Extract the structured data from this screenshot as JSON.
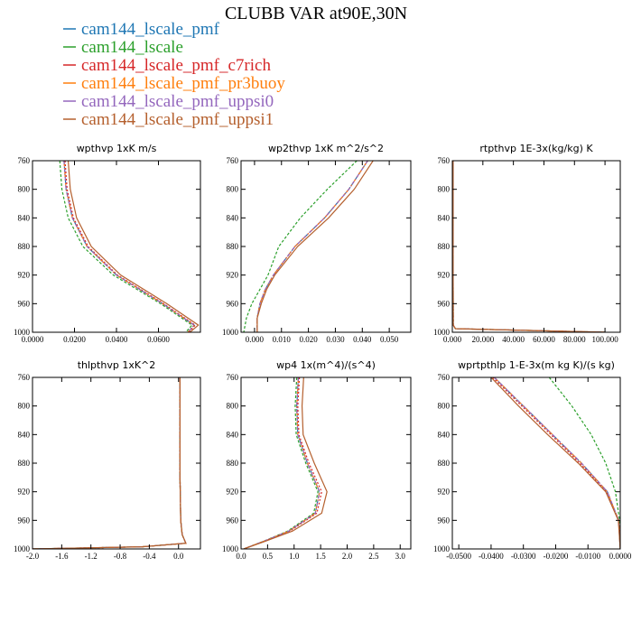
{
  "figure_title": "CLUBB VAR at90E,30N",
  "legend": [
    {
      "label": "cam144_lscale_pmf",
      "color": "#1f77b4"
    },
    {
      "label": "cam144_lscale",
      "color": "#2ca02c"
    },
    {
      "label": "cam144_lscale_pmf_c7rich",
      "color": "#d62728"
    },
    {
      "label": "cam144_lscale_pmf_pr3buoy",
      "color": "#ff7f0e"
    },
    {
      "label": "cam144_lscale_pmf_uppsi0",
      "color": "#9467bd"
    },
    {
      "label": "cam144_lscale_pmf_uppsi1",
      "color": "#b5602e"
    }
  ],
  "chart_data": [
    {
      "type": "line",
      "title": "wpthvp  1xK m/s",
      "xlim": [
        0,
        0.08
      ],
      "ylim": [
        760,
        1000
      ],
      "xticks": [
        0,
        0.02,
        0.04,
        0.06
      ],
      "xtick_labels": [
        "0.0000",
        "0.0200",
        "0.0400",
        "0.0600"
      ],
      "yticks": [
        760,
        800,
        840,
        880,
        920,
        960,
        1000
      ],
      "ytick_labels": [
        "760",
        "800",
        "840",
        "880",
        "920",
        "960",
        "1000"
      ],
      "y": [
        760,
        800,
        840,
        880,
        920,
        960,
        990,
        1000
      ],
      "series": [
        {
          "values": [
            0.015,
            0.016,
            0.019,
            0.026,
            0.04,
            0.062,
            0.077,
            0.074
          ]
        },
        {
          "values": [
            0.013,
            0.014,
            0.017,
            0.024,
            0.0385,
            0.061,
            0.076,
            0.073
          ]
        },
        {
          "values": [
            0.0155,
            0.0165,
            0.0195,
            0.0265,
            0.0405,
            0.0625,
            0.0775,
            0.0745
          ]
        },
        {
          "values": [
            0.015,
            0.016,
            0.019,
            0.026,
            0.04,
            0.062,
            0.077,
            0.074
          ]
        },
        {
          "values": [
            0.015,
            0.016,
            0.019,
            0.026,
            0.04,
            0.062,
            0.077,
            0.074
          ]
        },
        {
          "values": [
            0.017,
            0.018,
            0.021,
            0.028,
            0.042,
            0.064,
            0.079,
            0.075
          ]
        }
      ]
    },
    {
      "type": "line",
      "title": "wp2thvp  1xK m^2/s^2",
      "xlim": [
        -0.005,
        0.058
      ],
      "ylim": [
        760,
        1000
      ],
      "xticks": [
        0,
        0.01,
        0.02,
        0.03,
        0.04,
        0.05
      ],
      "xtick_labels": [
        "0.000",
        "0.010",
        "0.020",
        "0.030",
        "0.040",
        "0.050"
      ],
      "yticks": [
        760,
        800,
        840,
        880,
        920,
        960,
        1000
      ],
      "ytick_labels": [
        "760",
        "800",
        "840",
        "880",
        "920",
        "960",
        "1000"
      ],
      "y": [
        760,
        800,
        840,
        880,
        920,
        940,
        960,
        980,
        1000
      ],
      "series": [
        {
          "values": [
            0.042,
            0.035,
            0.026,
            0.015,
            0.007,
            0.004,
            0.002,
            0.001,
            0.001
          ]
        },
        {
          "values": [
            0.038,
            0.027,
            0.017,
            0.009,
            0.005,
            0.002,
            -0.001,
            -0.003,
            -0.004
          ]
        },
        {
          "values": [
            0.042,
            0.035,
            0.026,
            0.015,
            0.007,
            0.004,
            0.002,
            0.001,
            0.001
          ]
        },
        {
          "values": [
            0.042,
            0.035,
            0.026,
            0.015,
            0.007,
            0.004,
            0.002,
            0.001,
            0.001
          ]
        },
        {
          "values": [
            0.042,
            0.035,
            0.026,
            0.015,
            0.007,
            0.004,
            0.002,
            0.001,
            0.001
          ]
        },
        {
          "values": [
            0.044,
            0.037,
            0.0275,
            0.016,
            0.0075,
            0.0045,
            0.0025,
            0.001,
            0.001
          ]
        }
      ]
    },
    {
      "type": "line",
      "title": "rtpthvp  1E-3x(kg/kg) K",
      "xlim": [
        0,
        110
      ],
      "ylim": [
        760,
        1000
      ],
      "xticks": [
        0,
        20,
        40,
        60,
        80,
        100
      ],
      "xtick_labels": [
        "0.000",
        "20.000",
        "40.000",
        "60.000",
        "80.000",
        "100.000"
      ],
      "yticks": [
        760,
        800,
        840,
        880,
        920,
        960,
        1000
      ],
      "ytick_labels": [
        "760",
        "800",
        "840",
        "880",
        "920",
        "960",
        "1000"
      ],
      "y": [
        760,
        800,
        900,
        990,
        995,
        1000
      ],
      "series": [
        {
          "values": [
            0.5,
            0.5,
            0.5,
            0.6,
            2.0,
            100.0
          ]
        },
        {
          "values": [
            0.5,
            0.5,
            0.5,
            0.6,
            2.0,
            100.0
          ]
        },
        {
          "values": [
            0.5,
            0.5,
            0.5,
            0.6,
            2.0,
            100.0
          ]
        },
        {
          "values": [
            0.5,
            0.5,
            0.5,
            0.6,
            2.0,
            100.0
          ]
        },
        {
          "values": [
            0.5,
            0.5,
            0.5,
            0.6,
            2.0,
            100.0
          ]
        },
        {
          "values": [
            0.5,
            0.5,
            0.5,
            0.6,
            2.0,
            100.0
          ]
        }
      ]
    },
    {
      "type": "line",
      "title": "thlpthvp   1xK^2",
      "xlim": [
        -2.0,
        0.3
      ],
      "ylim": [
        760,
        1000
      ],
      "xticks": [
        -2.0,
        -1.6,
        -1.2,
        -0.8,
        -0.4,
        0.0
      ],
      "xtick_labels": [
        "-2.0",
        "-1.6",
        "-1.2",
        "-0.8",
        "-0.4",
        "0.0"
      ],
      "yticks": [
        760,
        800,
        840,
        880,
        920,
        960,
        1000
      ],
      "ytick_labels": [
        "760",
        "800",
        "840",
        "880",
        "920",
        "960",
        "1000"
      ],
      "y": [
        760,
        800,
        900,
        960,
        980,
        992,
        997,
        1000
      ],
      "series": [
        {
          "values": [
            0.02,
            0.02,
            0.02,
            0.03,
            0.05,
            0.1,
            -0.5,
            -2.0
          ]
        },
        {
          "values": [
            0.02,
            0.02,
            0.02,
            0.03,
            0.05,
            0.1,
            -0.5,
            -2.0
          ]
        },
        {
          "values": [
            0.02,
            0.02,
            0.02,
            0.03,
            0.05,
            0.1,
            -0.5,
            -2.0
          ]
        },
        {
          "values": [
            0.02,
            0.02,
            0.02,
            0.03,
            0.05,
            0.1,
            -0.5,
            -2.0
          ]
        },
        {
          "values": [
            0.02,
            0.02,
            0.02,
            0.03,
            0.05,
            0.1,
            -0.5,
            -2.0
          ]
        },
        {
          "values": [
            0.02,
            0.02,
            0.02,
            0.03,
            0.05,
            0.1,
            -0.5,
            -2.0
          ]
        }
      ]
    },
    {
      "type": "line",
      "title": "wp4   1x(m^4)/(s^4)",
      "xlim": [
        0,
        3.2
      ],
      "ylim": [
        760,
        1000
      ],
      "xticks": [
        0,
        0.5,
        1.0,
        1.5,
        2.0,
        2.5,
        3.0
      ],
      "xtick_labels": [
        "0.0",
        "0.5",
        "1.0",
        "1.5",
        "2.0",
        "2.5",
        "3.0"
      ],
      "yticks": [
        760,
        800,
        840,
        880,
        920,
        960,
        1000
      ],
      "ytick_labels": [
        "760",
        "800",
        "840",
        "880",
        "920",
        "960",
        "1000"
      ],
      "y": [
        760,
        800,
        840,
        880,
        920,
        950,
        975,
        990,
        1000
      ],
      "series": [
        {
          "values": [
            1.08,
            1.05,
            1.07,
            1.25,
            1.48,
            1.4,
            0.9,
            0.4,
            0.05
          ]
        },
        {
          "values": [
            1.05,
            1.02,
            1.04,
            1.22,
            1.45,
            1.37,
            0.88,
            0.4,
            0.05
          ]
        },
        {
          "values": [
            1.1,
            1.07,
            1.09,
            1.28,
            1.52,
            1.43,
            0.92,
            0.41,
            0.05
          ]
        },
        {
          "values": [
            1.08,
            1.05,
            1.07,
            1.25,
            1.48,
            1.4,
            0.9,
            0.4,
            0.05
          ]
        },
        {
          "values": [
            1.08,
            1.05,
            1.07,
            1.25,
            1.48,
            1.4,
            0.9,
            0.4,
            0.05
          ]
        },
        {
          "values": [
            1.18,
            1.15,
            1.17,
            1.38,
            1.62,
            1.52,
            0.97,
            0.43,
            0.05
          ]
        }
      ]
    },
    {
      "type": "line",
      "title": "wprtpthlp   1-E-3x(m kg K)/(s kg)",
      "xlim": [
        -0.052,
        0.0
      ],
      "ylim": [
        760,
        1000
      ],
      "xticks": [
        -0.05,
        -0.04,
        -0.03,
        -0.02,
        -0.01,
        0.0
      ],
      "xtick_labels": [
        "-0.0500",
        "-0.0400",
        "-0.0300",
        "-0.0200",
        "-0.0100",
        "0.0000"
      ],
      "yticks": [
        760,
        800,
        840,
        880,
        920,
        960,
        1000
      ],
      "ytick_labels": [
        "760",
        "800",
        "840",
        "880",
        "920",
        "960",
        "1000"
      ],
      "y": [
        760,
        800,
        840,
        880,
        920,
        960,
        1000
      ],
      "series": [
        {
          "values": [
            -0.039,
            -0.03,
            -0.021,
            -0.012,
            -0.004,
            -0.0005,
            0.0
          ]
        },
        {
          "values": [
            -0.022,
            -0.015,
            -0.009,
            -0.0045,
            -0.0015,
            -0.0002,
            0.0
          ]
        },
        {
          "values": [
            -0.0395,
            -0.0305,
            -0.0215,
            -0.0125,
            -0.0042,
            -0.0005,
            0.0
          ]
        },
        {
          "values": [
            -0.039,
            -0.03,
            -0.021,
            -0.012,
            -0.004,
            -0.0005,
            0.0
          ]
        },
        {
          "values": [
            -0.039,
            -0.03,
            -0.021,
            -0.012,
            -0.004,
            -0.0005,
            0.0
          ]
        },
        {
          "values": [
            -0.04,
            -0.0315,
            -0.0225,
            -0.013,
            -0.0045,
            -0.0006,
            0.0
          ]
        }
      ]
    }
  ]
}
